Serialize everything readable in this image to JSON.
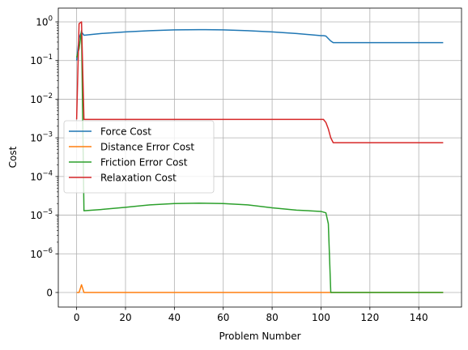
{
  "chart_data": {
    "type": "line",
    "title": "",
    "xlabel": "Problem Number",
    "ylabel": "Cost",
    "xlim": [
      -7.5,
      157.5
    ],
    "yscale": "symlog",
    "symlog_linthresh": 1e-06,
    "ylim_tick_exponents": [
      -6,
      0
    ],
    "grid": true,
    "legend_position": "center-left",
    "x_ticks": [
      "0",
      "20",
      "40",
      "60",
      "80",
      "100",
      "120",
      "140"
    ],
    "y_ticks": [
      {
        "base": "0",
        "exp": ""
      },
      {
        "base": "10",
        "exp": "−6"
      },
      {
        "base": "10",
        "exp": "−5"
      },
      {
        "base": "10",
        "exp": "−4"
      },
      {
        "base": "10",
        "exp": "−3"
      },
      {
        "base": "10",
        "exp": "−2"
      },
      {
        "base": "10",
        "exp": "−1"
      },
      {
        "base": "10",
        "exp": "0"
      }
    ],
    "series": [
      {
        "name": "Force Cost",
        "color": "#1f77b4",
        "points": [
          [
            0,
            0.1
          ],
          [
            1,
            0.38
          ],
          [
            2,
            0.55
          ],
          [
            3,
            0.45
          ],
          [
            10,
            0.5
          ],
          [
            20,
            0.55
          ],
          [
            30,
            0.59
          ],
          [
            40,
            0.62
          ],
          [
            50,
            0.63
          ],
          [
            60,
            0.62
          ],
          [
            70,
            0.59
          ],
          [
            80,
            0.55
          ],
          [
            90,
            0.5
          ],
          [
            100,
            0.44
          ],
          [
            101,
            0.44
          ],
          [
            102,
            0.43
          ],
          [
            103,
            0.37
          ],
          [
            104,
            0.32
          ],
          [
            105,
            0.29
          ],
          [
            120,
            0.29
          ],
          [
            140,
            0.29
          ],
          [
            150,
            0.29
          ]
        ]
      },
      {
        "name": "Distance Error Cost",
        "color": "#ff7f0e",
        "points": [
          [
            0,
            0
          ],
          [
            1,
            0
          ],
          [
            2,
            2e-07
          ],
          [
            3,
            0
          ],
          [
            50,
            0
          ],
          [
            100,
            0
          ],
          [
            150,
            0
          ]
        ]
      },
      {
        "name": "Friction Error Cost",
        "color": "#2ca02c",
        "points": [
          [
            0,
            0.12
          ],
          [
            1,
            0.2
          ],
          [
            2,
            0.6
          ],
          [
            3,
            1.3e-05
          ],
          [
            10,
            1.4e-05
          ],
          [
            20,
            1.6e-05
          ],
          [
            30,
            1.85e-05
          ],
          [
            40,
            2e-05
          ],
          [
            50,
            2.05e-05
          ],
          [
            60,
            2e-05
          ],
          [
            70,
            1.85e-05
          ],
          [
            80,
            1.55e-05
          ],
          [
            90,
            1.35e-05
          ],
          [
            100,
            1.25e-05
          ],
          [
            102,
            1.15e-05
          ],
          [
            103,
            6e-06
          ],
          [
            104,
            0
          ],
          [
            150,
            0
          ]
        ]
      },
      {
        "name": "Relaxation Cost",
        "color": "#d62728",
        "points": [
          [
            0,
            0.003
          ],
          [
            1,
            0.9
          ],
          [
            2,
            1.0
          ],
          [
            3,
            0.003
          ],
          [
            40,
            0.003
          ],
          [
            80,
            0.003
          ],
          [
            101,
            0.003
          ],
          [
            102,
            0.0025
          ],
          [
            103,
            0.0017
          ],
          [
            104,
            0.001
          ],
          [
            105,
            0.00075
          ],
          [
            120,
            0.00075
          ],
          [
            150,
            0.00075
          ]
        ]
      }
    ]
  }
}
